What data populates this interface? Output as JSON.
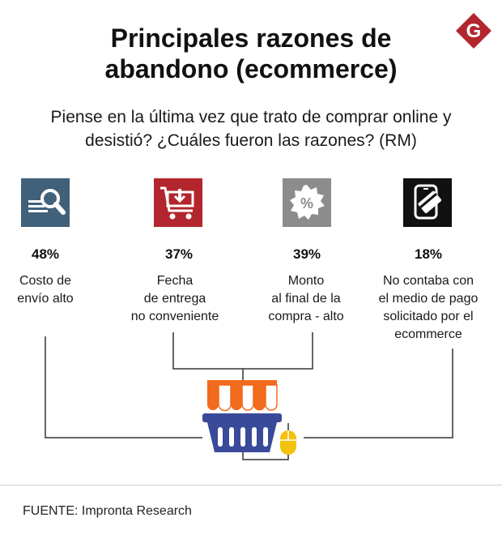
{
  "title": {
    "line1": "Principales razones de",
    "line2": "abandono (ecommerce)"
  },
  "subtitle": {
    "line1": "Piense en la última vez que trato de comprar online y",
    "line2": "desistió? ¿Cuáles fueron las razones? (RM)"
  },
  "logo_letter": "G",
  "chart_data": {
    "type": "table",
    "title": "Principales razones de abandono (ecommerce)",
    "categories": [
      "Costo de envío alto",
      "Fecha de entrega no conveniente",
      "Monto al final de la compra - alto",
      "No contaba con el medio de pago solicitado por el ecommerce"
    ],
    "values": [
      48,
      37,
      39,
      18
    ],
    "value_labels": [
      "48%",
      "37%",
      "39%",
      "18%"
    ],
    "items": [
      {
        "pct": "48%",
        "label_lines": [
          "Costo de",
          "envío alto"
        ],
        "icon": "search-list-icon",
        "icon_color": "#41607a"
      },
      {
        "pct": "37%",
        "label_lines": [
          "Fecha",
          "de entrega",
          "no conveniente"
        ],
        "icon": "cart-download-icon",
        "icon_color": "#b3262d"
      },
      {
        "pct": "39%",
        "label_lines": [
          "Monto",
          "al final de la",
          "compra - alto"
        ],
        "icon": "percent-badge-icon",
        "icon_color": "#8c8c8c"
      },
      {
        "pct": "18%",
        "label_lines": [
          "No contaba con",
          "el medio de pago",
          "solicitado por el",
          "ecommerce"
        ],
        "icon": "mobile-card-icon",
        "icon_color": "#111111"
      }
    ]
  },
  "colors": {
    "brand_red": "#b3262d",
    "basket_blue": "#3a4a9a",
    "awning_orange": "#f26a1b",
    "mouse_yellow": "#f4c20d"
  },
  "source": "FUENTE: Impronta Research"
}
